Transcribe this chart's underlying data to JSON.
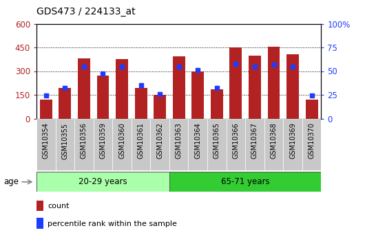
{
  "title": "GDS473 / 224133_at",
  "samples": [
    "GSM10354",
    "GSM10355",
    "GSM10356",
    "GSM10359",
    "GSM10360",
    "GSM10361",
    "GSM10362",
    "GSM10363",
    "GSM10364",
    "GSM10365",
    "GSM10366",
    "GSM10367",
    "GSM10368",
    "GSM10369",
    "GSM10370"
  ],
  "counts": [
    120,
    195,
    380,
    270,
    375,
    195,
    148,
    395,
    300,
    185,
    450,
    400,
    455,
    405,
    120
  ],
  "percentiles": [
    145,
    195,
    330,
    285,
    330,
    210,
    155,
    330,
    305,
    195,
    345,
    330,
    340,
    330,
    145
  ],
  "group1_label": "20-29 years",
  "group2_label": "65-71 years",
  "group1_count": 7,
  "group2_count": 8,
  "ylim_left": [
    0,
    600
  ],
  "ylim_right": [
    0,
    100
  ],
  "yticks_left": [
    0,
    150,
    300,
    450,
    600
  ],
  "yticks_right": [
    0,
    25,
    50,
    75,
    100
  ],
  "bar_color": "#b22222",
  "dot_color": "#1e3cff",
  "group1_bg": "#aaffaa",
  "group2_bg": "#33cc33",
  "tick_bg": "#c8c8c8",
  "legend_count_label": "count",
  "legend_pct_label": "percentile rank within the sample",
  "age_label": "age",
  "figsize": [
    5.3,
    3.45
  ],
  "dpi": 100
}
